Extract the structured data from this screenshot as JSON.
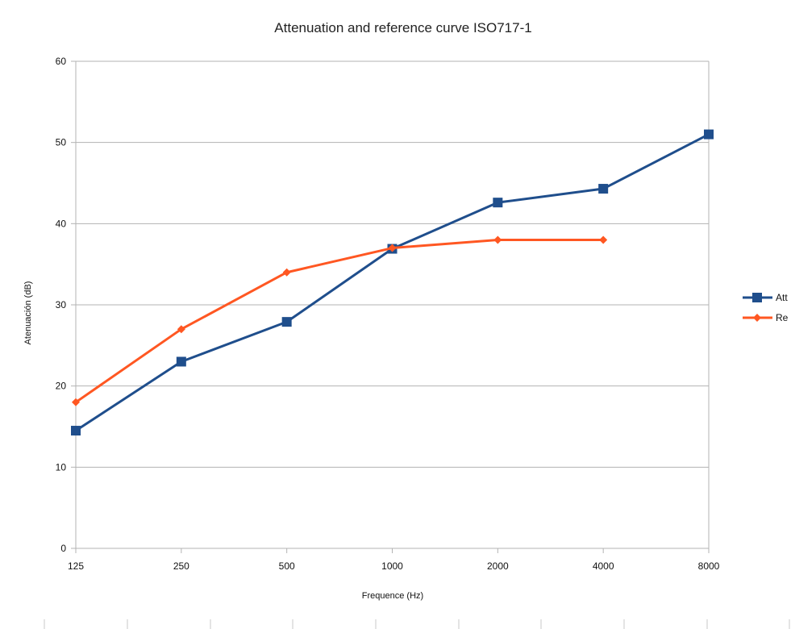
{
  "chart_data": {
    "type": "line",
    "title": "Attenuation and reference curve ISO717-1",
    "xlabel": "Frequence (Hz)",
    "ylabel": "Atenuación (dB)",
    "categories": [
      "125",
      "250",
      "500",
      "1000",
      "2000",
      "4000",
      "8000"
    ],
    "ylim": [
      0,
      60
    ],
    "yticks": [
      "0",
      "10",
      "20",
      "30",
      "40",
      "50",
      "60"
    ],
    "grid": true,
    "legend_position": "right",
    "series": [
      {
        "name": "Att",
        "color": "#1f4e8c",
        "marker": "square",
        "values": [
          14.5,
          23,
          27.9,
          36.9,
          42.6,
          44.3,
          51
        ]
      },
      {
        "name": "Re",
        "color": "#ff5722",
        "marker": "diamond",
        "values": [
          18,
          27,
          34,
          37,
          38,
          38,
          null
        ]
      }
    ]
  }
}
